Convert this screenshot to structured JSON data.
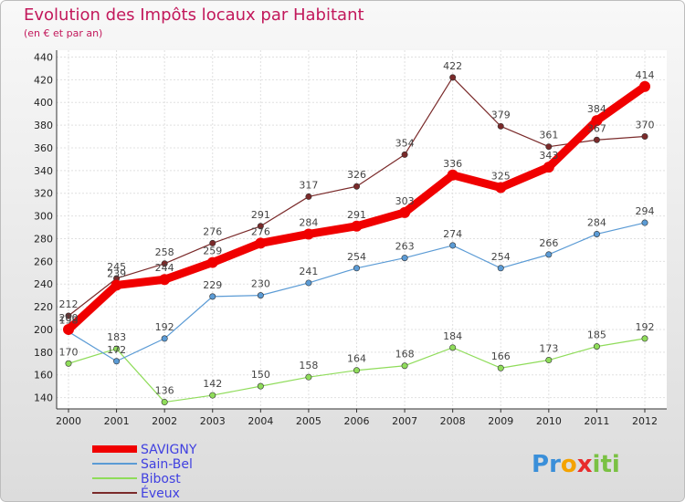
{
  "chart_data": {
    "type": "line",
    "title": "Evolution des Impôts locaux par Habitant",
    "subtitle": "(en € et par an)",
    "x": [
      "2000",
      "2001",
      "2002",
      "2003",
      "2004",
      "2005",
      "2006",
      "2007",
      "2008",
      "2009",
      "2010",
      "2011",
      "2012"
    ],
    "ylim": [
      130,
      446
    ],
    "yticks": [
      140,
      160,
      180,
      200,
      220,
      240,
      260,
      280,
      300,
      320,
      340,
      360,
      380,
      400,
      420,
      440
    ],
    "grid": true,
    "legend_position": "bottom-left",
    "series": [
      {
        "name": "SAVIGNY",
        "color": "#f00000",
        "values": [
          200,
          239,
          244,
          259,
          276,
          284,
          291,
          303,
          336,
          325,
          343,
          384,
          414
        ]
      },
      {
        "name": "Sain-Bel",
        "color": "#5b9bd5",
        "values": [
          198,
          172,
          192,
          229,
          230,
          241,
          254,
          263,
          274,
          254,
          266,
          284,
          294
        ]
      },
      {
        "name": "Bibost",
        "color": "#8fdc5a",
        "values": [
          170,
          183,
          136,
          142,
          150,
          158,
          164,
          168,
          184,
          166,
          173,
          185,
          192
        ]
      },
      {
        "name": "Éveux",
        "color": "#7a2a2a",
        "values": [
          212,
          245,
          258,
          276,
          291,
          317,
          326,
          354,
          422,
          379,
          361,
          367,
          370
        ]
      }
    ]
  },
  "logo": {
    "text": "Proxiti",
    "letters": [
      "P",
      "r",
      "o",
      "x",
      "i",
      "t",
      "i"
    ],
    "colors": [
      "#3a8fd9",
      "#3a8fd9",
      "#f4a300",
      "#e82c2c",
      "#7ac143",
      "#7ac143",
      "#7ac143"
    ]
  }
}
